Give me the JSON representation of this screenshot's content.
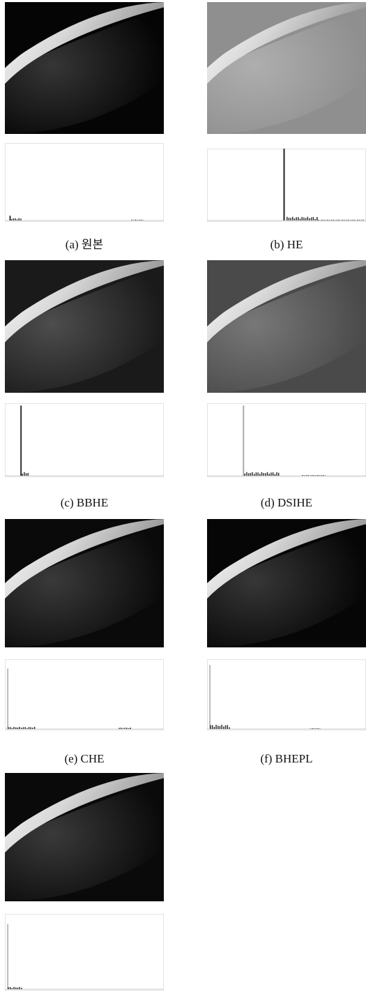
{
  "figure": {
    "captions": [
      "(a) 원본",
      "(b) HE",
      "(c) BBHE",
      "(d) DSIHE",
      "(e) CHE",
      "(f) BHEPL"
    ]
  }
}
